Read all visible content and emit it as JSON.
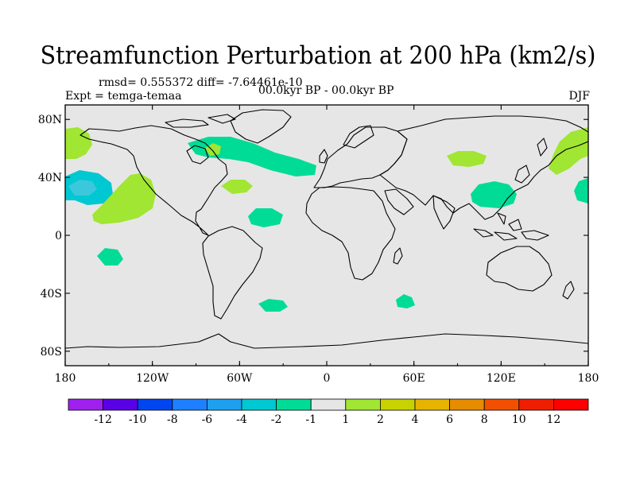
{
  "title": "Streamfunction Perturbation at 200 hPa (km2/s)",
  "stats": "rmsd= 0.555372 diff= -7.64461e-10",
  "experiment": "Expt = temga-temaa",
  "period": "00.0kyr BP - 00.0kyr BP",
  "season": "DJF",
  "chart_data": {
    "type": "heatmap",
    "projection": "cylindrical-equidistant",
    "x_ticks": [
      "180",
      "120W",
      "60W",
      "0",
      "60E",
      "120E",
      "180"
    ],
    "x_tick_values": [
      -180,
      -120,
      -60,
      0,
      60,
      120,
      180
    ],
    "y_ticks": [
      "80N",
      "40N",
      "0",
      "40S",
      "80S"
    ],
    "y_tick_values": [
      80,
      40,
      0,
      -40,
      -80
    ],
    "xlim": [
      -180,
      180
    ],
    "ylim": [
      -90,
      90
    ],
    "colorbar": {
      "labels": [
        "-12",
        "-10",
        "-8",
        "-6",
        "-4",
        "-2",
        "-1",
        "1",
        "2",
        "4",
        "6",
        "8",
        "10",
        "12"
      ],
      "colors": [
        "#a020f0",
        "#5a00e6",
        "#0046f0",
        "#1e80ff",
        "#1ea0f0",
        "#00c8d2",
        "#00dc96",
        "#e6e6e6",
        "#a0e632",
        "#c8d200",
        "#e6b400",
        "#e68c00",
        "#f05000",
        "#f01e00",
        "#ff0000"
      ],
      "background_color": "#e6e6e6"
    },
    "anomalies": [
      {
        "name": "north-atlantic-band",
        "center_lon": -60,
        "center_lat": 52,
        "level": "-2 to -1",
        "color": "#00dc96"
      },
      {
        "name": "subtropical-atlantic",
        "center_lon": -42,
        "center_lat": 12,
        "level": "-2 to -1",
        "color": "#00dc96"
      },
      {
        "name": "south-pacific-east",
        "center_lon": -145,
        "center_lat": -17,
        "level": "-2 to -1",
        "color": "#00dc96"
      },
      {
        "name": "south-atlantic",
        "center_lon": -37,
        "center_lat": -48,
        "level": "-2 to -1",
        "color": "#00dc96"
      },
      {
        "name": "south-indian-ocean",
        "center_lon": 55,
        "center_lat": -45,
        "level": "-2 to -1",
        "color": "#00dc96"
      },
      {
        "name": "east-asia",
        "center_lon": 115,
        "center_lat": 28,
        "level": "-2 to -1",
        "color": "#00dc96"
      },
      {
        "name": "north-pacific-west-edge",
        "center_lon": 180,
        "center_lat": 28,
        "level": "-2 to -1",
        "color": "#00dc96"
      },
      {
        "name": "north-pacific-east",
        "center_lon": -175,
        "center_lat": 30,
        "level": "-4 to -2",
        "color": "#00c8d2"
      },
      {
        "name": "east-pacific-ridge",
        "center_lon": -133,
        "center_lat": 20,
        "level": "1 to 2",
        "color": "#a0e632"
      },
      {
        "name": "alaska-bering",
        "center_lon": -175,
        "center_lat": 62,
        "level": "1 to 2",
        "color": "#a0e632"
      },
      {
        "name": "central-asia",
        "center_lon": 98,
        "center_lat": 50,
        "level": "1 to 2",
        "color": "#a0e632"
      },
      {
        "name": "far-east-siberia",
        "center_lon": 172,
        "center_lat": 57,
        "level": "1 to 2",
        "color": "#a0e632"
      },
      {
        "name": "subtropical-north-atlantic",
        "center_lon": -63,
        "center_lat": 33,
        "level": "1 to 2",
        "color": "#a0e632"
      },
      {
        "name": "canada-small",
        "center_lon": -75,
        "center_lat": 57,
        "level": "1 to 2",
        "color": "#a0e632"
      }
    ]
  }
}
